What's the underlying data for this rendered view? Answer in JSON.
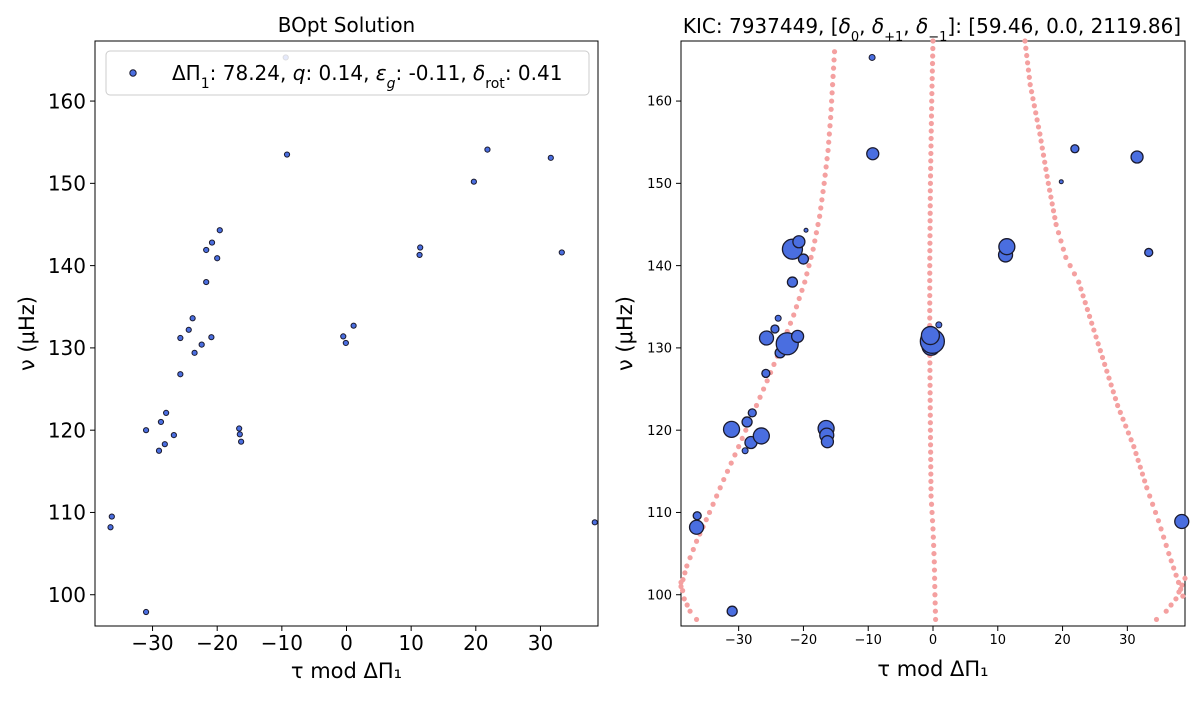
{
  "chart_data": [
    {
      "type": "scatter",
      "title": "BOpt Solution",
      "xlabel": "τ mod ΔΠ₁",
      "ylabel": "ν (μHz)",
      "xlim": [
        -38.9,
        38.9
      ],
      "ylim": [
        96.2,
        167.3
      ],
      "xticks": [
        -30,
        -20,
        -10,
        0,
        10,
        20,
        30
      ],
      "yticks": [
        100,
        110,
        120,
        130,
        140,
        150,
        160
      ],
      "legend": {
        "position": "top-right",
        "parts": {
          "p1": "ΔΠ",
          "p1sub": "1",
          "p1val": ": 78.24, ",
          "p2": "q",
          "p2val": ": 0.14, ",
          "p3": "ε",
          "p3sub": "g",
          "p3val": ": -0.11, ",
          "p4": "δ",
          "p4sub": "rot",
          "p4val": ": 0.41"
        }
      },
      "marker_color": "#4a6ee0",
      "points": [
        [
          -36.5,
          108.2
        ],
        [
          -36.3,
          109.5
        ],
        [
          -31.0,
          97.9
        ],
        [
          -31.0,
          120.0
        ],
        [
          -29.0,
          117.5
        ],
        [
          -28.7,
          121.0
        ],
        [
          -28.1,
          118.3
        ],
        [
          -27.9,
          122.1
        ],
        [
          -26.7,
          119.4
        ],
        [
          -25.7,
          126.8
        ],
        [
          -25.7,
          131.2
        ],
        [
          -24.4,
          132.2
        ],
        [
          -23.8,
          133.6
        ],
        [
          -23.5,
          129.4
        ],
        [
          -22.4,
          130.4
        ],
        [
          -21.7,
          138.0
        ],
        [
          -21.7,
          141.9
        ],
        [
          -20.9,
          131.3
        ],
        [
          -20.8,
          142.8
        ],
        [
          -20.0,
          140.9
        ],
        [
          -19.6,
          144.3
        ],
        [
          -16.6,
          120.2
        ],
        [
          -16.5,
          119.5
        ],
        [
          -16.3,
          118.6
        ],
        [
          -9.2,
          153.5
        ],
        [
          -0.5,
          131.4
        ],
        [
          -0.1,
          130.6
        ],
        [
          1.1,
          132.7
        ],
        [
          11.3,
          141.3
        ],
        [
          11.4,
          142.2
        ],
        [
          19.7,
          150.2
        ],
        [
          21.8,
          154.1
        ],
        [
          31.6,
          153.1
        ],
        [
          33.3,
          141.6
        ],
        [
          38.4,
          108.8
        ],
        [
          -9.4,
          165.3
        ]
      ]
    },
    {
      "type": "scatter",
      "title": "KIC: 7937449, [δ₀, δ₊₁, δ₋₁]: [59.46, 0.0, 2119.86]",
      "title_parts": {
        "t1": "KIC: 7937449, [",
        "d0": "δ",
        "d0sub": "0",
        "c1": ", ",
        "d1": "δ",
        "d1sub": "+1",
        "c2": ", ",
        "d2": "δ",
        "d2sub": "−1",
        "t2": "]: [59.46, 0.0, 2119.86]"
      },
      "xlabel": "τ mod ΔΠ₁",
      "ylabel": "ν (μHz)",
      "xlim": [
        -38.9,
        38.9
      ],
      "ylim": [
        96.2,
        167.3
      ],
      "xticks": [
        -30,
        -20,
        -10,
        0,
        10,
        20,
        30
      ],
      "yticks": [
        100,
        110,
        120,
        130,
        140,
        150,
        160
      ],
      "marker_color": "#4a6ee0",
      "model_color": "#f4a0a0",
      "points": [
        [
          -36.4,
          109.6,
          4
        ],
        [
          -36.5,
          108.2,
          7
        ],
        [
          -31.1,
          120.1,
          8
        ],
        [
          -31.0,
          98.0,
          5
        ],
        [
          -29.0,
          117.5,
          3
        ],
        [
          -28.7,
          121.0,
          5
        ],
        [
          -28.1,
          118.5,
          6
        ],
        [
          -27.9,
          122.1,
          4
        ],
        [
          -26.5,
          119.3,
          8
        ],
        [
          -25.8,
          126.9,
          4
        ],
        [
          -25.7,
          131.2,
          7
        ],
        [
          -24.4,
          132.3,
          4
        ],
        [
          -23.9,
          133.6,
          3
        ],
        [
          -23.6,
          129.4,
          5
        ],
        [
          -22.5,
          130.5,
          11
        ],
        [
          -21.7,
          138.0,
          5
        ],
        [
          -21.7,
          142.0,
          10
        ],
        [
          -20.9,
          131.4,
          6
        ],
        [
          -20.7,
          142.9,
          6
        ],
        [
          -20.0,
          140.8,
          5
        ],
        [
          -19.6,
          144.3,
          2
        ],
        [
          -16.5,
          120.2,
          8
        ],
        [
          -16.4,
          119.4,
          7
        ],
        [
          -16.3,
          118.6,
          6
        ],
        [
          -9.3,
          153.6,
          6
        ],
        [
          -9.4,
          165.3,
          3
        ],
        [
          -0.3,
          130.2,
          9
        ],
        [
          -0.1,
          130.8,
          12
        ],
        [
          -0.4,
          131.5,
          9
        ],
        [
          0.9,
          132.8,
          3
        ],
        [
          11.2,
          141.3,
          7
        ],
        [
          11.4,
          142.3,
          8
        ],
        [
          19.8,
          150.2,
          2
        ],
        [
          21.9,
          154.2,
          4
        ],
        [
          31.5,
          153.2,
          6
        ],
        [
          33.3,
          141.6,
          4
        ],
        [
          38.4,
          108.9,
          7
        ]
      ],
      "model_branches": [
        [
          [
            -38.9,
            101.0
          ],
          [
            -38.0,
            103.5
          ],
          [
            -36.5,
            106.5
          ],
          [
            -34.5,
            110.0
          ],
          [
            -32.3,
            114.0
          ],
          [
            -30.0,
            118.0
          ],
          [
            -27.8,
            122.0
          ],
          [
            -25.6,
            126.0
          ],
          [
            -23.5,
            130.0
          ],
          [
            -21.5,
            134.0
          ],
          [
            -19.8,
            138.0
          ],
          [
            -18.5,
            142.0
          ],
          [
            -17.5,
            146.0
          ],
          [
            -16.8,
            150.0
          ],
          [
            -16.2,
            154.0
          ],
          [
            -15.8,
            158.0
          ],
          [
            -15.5,
            162.0
          ],
          [
            -15.2,
            166.0
          ],
          [
            -15.0,
            167.3
          ]
        ],
        [
          [
            -38.9,
            101.5
          ],
          [
            -38.4,
            99.5
          ],
          [
            -37.5,
            98.0
          ],
          [
            -36.5,
            97.0
          ],
          [
            -35.8,
            96.2
          ]
        ],
        [
          [
            0.0,
            167.3
          ],
          [
            -0.2,
            160.0
          ],
          [
            -0.4,
            150.0
          ],
          [
            -0.5,
            140.0
          ],
          [
            -0.5,
            130.0
          ],
          [
            -0.4,
            120.0
          ],
          [
            -0.3,
            112.0
          ],
          [
            0.0,
            108.0
          ],
          [
            0.2,
            104.0
          ],
          [
            0.3,
            100.0
          ],
          [
            0.4,
            97.0
          ],
          [
            0.5,
            96.2
          ]
        ],
        [
          [
            14.2,
            167.3
          ],
          [
            15.0,
            162.0
          ],
          [
            16.5,
            156.0
          ],
          [
            17.8,
            150.0
          ],
          [
            19.0,
            145.0
          ],
          [
            20.5,
            141.0
          ],
          [
            22.5,
            138.0
          ],
          [
            24.5,
            133.0
          ],
          [
            26.5,
            128.0
          ],
          [
            28.5,
            123.0
          ],
          [
            31.0,
            118.0
          ],
          [
            33.0,
            113.0
          ],
          [
            34.8,
            109.0
          ],
          [
            36.4,
            105.0
          ],
          [
            37.9,
            101.5
          ],
          [
            38.9,
            99.0
          ]
        ],
        [
          [
            38.9,
            102.0
          ],
          [
            37.5,
            99.5
          ],
          [
            36.0,
            98.0
          ],
          [
            34.5,
            97.0
          ],
          [
            33.5,
            96.2
          ]
        ]
      ]
    }
  ]
}
